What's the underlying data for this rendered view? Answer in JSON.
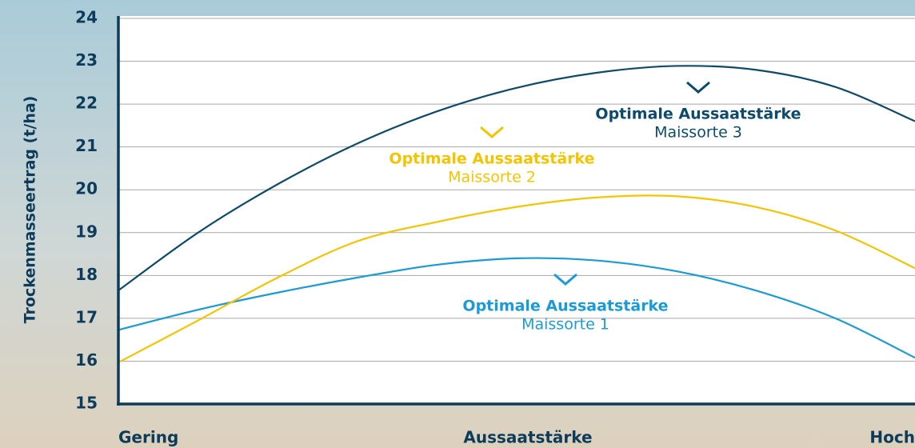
{
  "chart_data": {
    "type": "line",
    "y_label": "Trockenmasseertrag (t/ha)",
    "x_label": "Aussaatstärke",
    "categories": [
      "Gering",
      null,
      null,
      null,
      null,
      null,
      null,
      null,
      null,
      null,
      "Hoch"
    ],
    "series": [
      {
        "color": "#1a9bd7",
        "values": [
          16.73,
          17.2,
          17.6,
          17.95,
          18.25,
          18.4,
          18.35,
          18.1,
          17.65,
          17.0,
          16.08
        ]
      },
      {
        "color": "#f5c400",
        "values": [
          15.97,
          16.95,
          17.95,
          18.8,
          19.25,
          19.6,
          19.82,
          19.85,
          19.6,
          19.05,
          18.17
        ]
      },
      {
        "color": "#0d4a6b",
        "values": [
          17.65,
          19.0,
          20.13,
          21.08,
          21.83,
          22.38,
          22.73,
          22.89,
          22.8,
          22.4,
          21.6
        ]
      }
    ],
    "annotations": [
      {
        "title": "Optimale Aussaatstärke",
        "text": "Maissorte 1",
        "color": "#1a9bd7"
      },
      {
        "title": "Optimale Aussaatstärke",
        "text": "Maissorte 2",
        "color": "#f5c400"
      },
      {
        "title": "Optimale Aussaatstärke",
        "text": "Maissorte 3",
        "color": "#0d4a6b"
      }
    ],
    "ylim": [
      15,
      24
    ],
    "yticks": [
      15,
      16,
      17,
      18,
      19,
      20,
      21,
      22,
      23,
      24
    ],
    "grid": true
  }
}
